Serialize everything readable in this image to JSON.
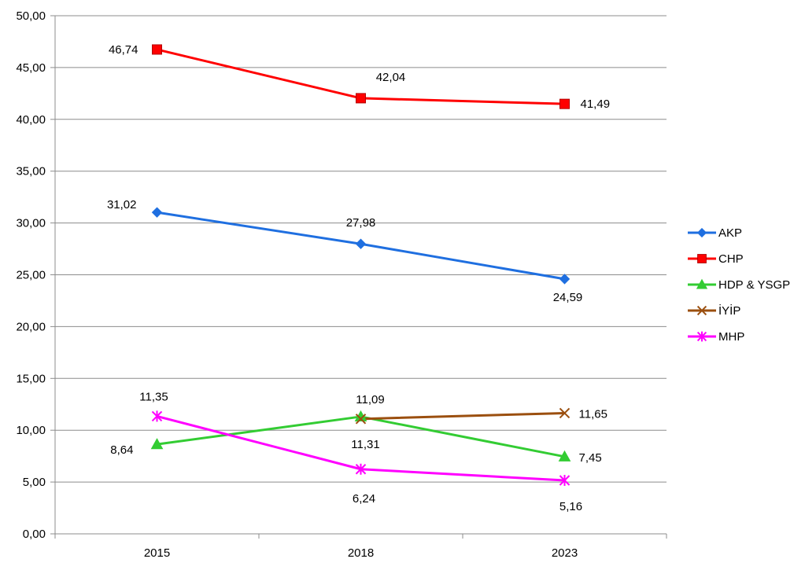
{
  "chart_data": {
    "type": "line",
    "categories": [
      "2015",
      "2018",
      "2023"
    ],
    "ylim": [
      0,
      50
    ],
    "yticks": [
      "0,00",
      "5,00",
      "10,00",
      "15,00",
      "20,00",
      "25,00",
      "30,00",
      "35,00",
      "40,00",
      "45,00",
      "50,00"
    ],
    "grid": true,
    "legend_position": "right",
    "series": [
      {
        "name": "AKP",
        "color": "#1f6fe0",
        "marker": "diamond",
        "values": [
          31.02,
          27.98,
          24.59
        ],
        "labels": [
          "31,02",
          "27,98",
          "24,59"
        ]
      },
      {
        "name": "CHP",
        "color": "#ff0000",
        "marker": "square",
        "values": [
          46.74,
          42.04,
          41.49
        ],
        "labels": [
          "46,74",
          "42,04",
          "41,49"
        ]
      },
      {
        "name": "HDP & YSGP",
        "color": "#33cc33",
        "marker": "triangle",
        "values": [
          8.64,
          11.31,
          7.45
        ],
        "labels": [
          "8,64",
          "11,31",
          "7,45"
        ]
      },
      {
        "name": "İYİP",
        "color": "#9b4f0f",
        "marker": "x",
        "values": [
          null,
          11.09,
          11.65
        ],
        "labels": [
          null,
          "11,09",
          "11,65"
        ]
      },
      {
        "name": "MHP",
        "color": "#ff00ff",
        "marker": "star",
        "values": [
          11.35,
          6.24,
          5.16
        ],
        "labels": [
          "11,35",
          "6,24",
          "5,16"
        ]
      }
    ]
  }
}
